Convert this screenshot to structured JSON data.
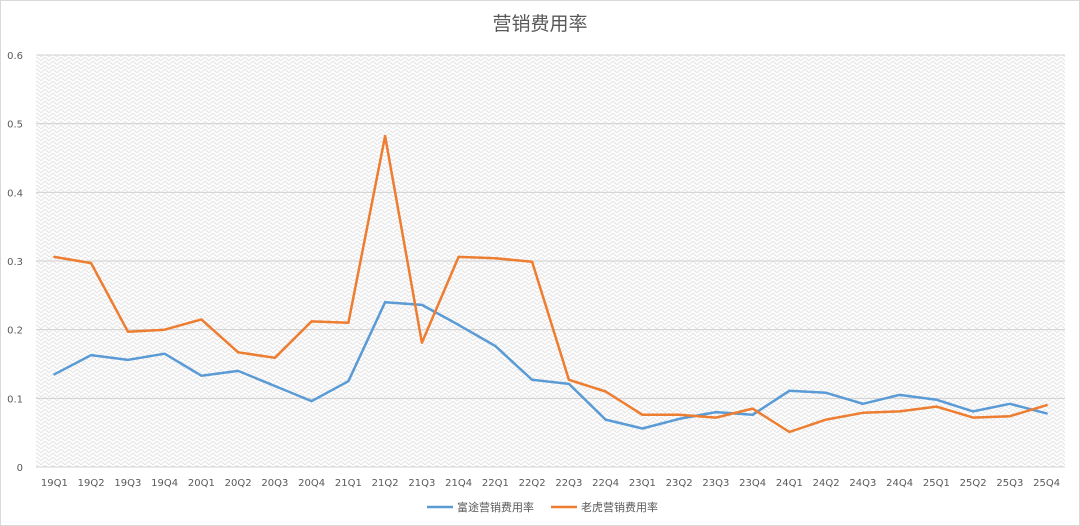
{
  "chart_data": {
    "type": "line",
    "title": "营销费用率",
    "xlabel": "",
    "ylabel": "",
    "categories": [
      "19Q1",
      "19Q2",
      "19Q3",
      "19Q4",
      "20Q1",
      "20Q2",
      "20Q3",
      "20Q4",
      "21Q1",
      "21Q2",
      "21Q3",
      "21Q4",
      "22Q1",
      "22Q2",
      "22Q3",
      "22Q4",
      "23Q1",
      "23Q2",
      "23Q3",
      "23Q4",
      "24Q1",
      "24Q2",
      "24Q3",
      "24Q4",
      "25Q1",
      "25Q2",
      "25Q3",
      "25Q4"
    ],
    "ylim": [
      0,
      0.6
    ],
    "yticks": [
      "0",
      "0.1",
      "0.2",
      "0.3",
      "0.4",
      "0.5",
      "0.6"
    ],
    "grid": true,
    "legend": "bottom",
    "series": [
      {
        "name": "富途营销费用率",
        "color": "#5b9bd5",
        "values": [
          0.135,
          0.163,
          0.156,
          0.165,
          0.133,
          0.14,
          0.118,
          0.096,
          0.125,
          0.24,
          0.236,
          0.207,
          0.176,
          0.127,
          0.121,
          0.069,
          0.056,
          0.07,
          0.08,
          0.076,
          0.111,
          0.108,
          0.092,
          0.105,
          0.098,
          0.081,
          0.092,
          0.078
        ]
      },
      {
        "name": "老虎营销费用率",
        "color": "#ed7d31",
        "values": [
          0.306,
          0.297,
          0.197,
          0.2,
          0.215,
          0.167,
          0.159,
          0.212,
          0.21,
          0.482,
          0.181,
          0.306,
          0.304,
          0.299,
          0.127,
          0.11,
          0.076,
          0.076,
          0.072,
          0.085,
          0.051,
          0.069,
          0.079,
          0.081,
          0.088,
          0.072,
          0.074,
          0.09
        ]
      }
    ]
  }
}
